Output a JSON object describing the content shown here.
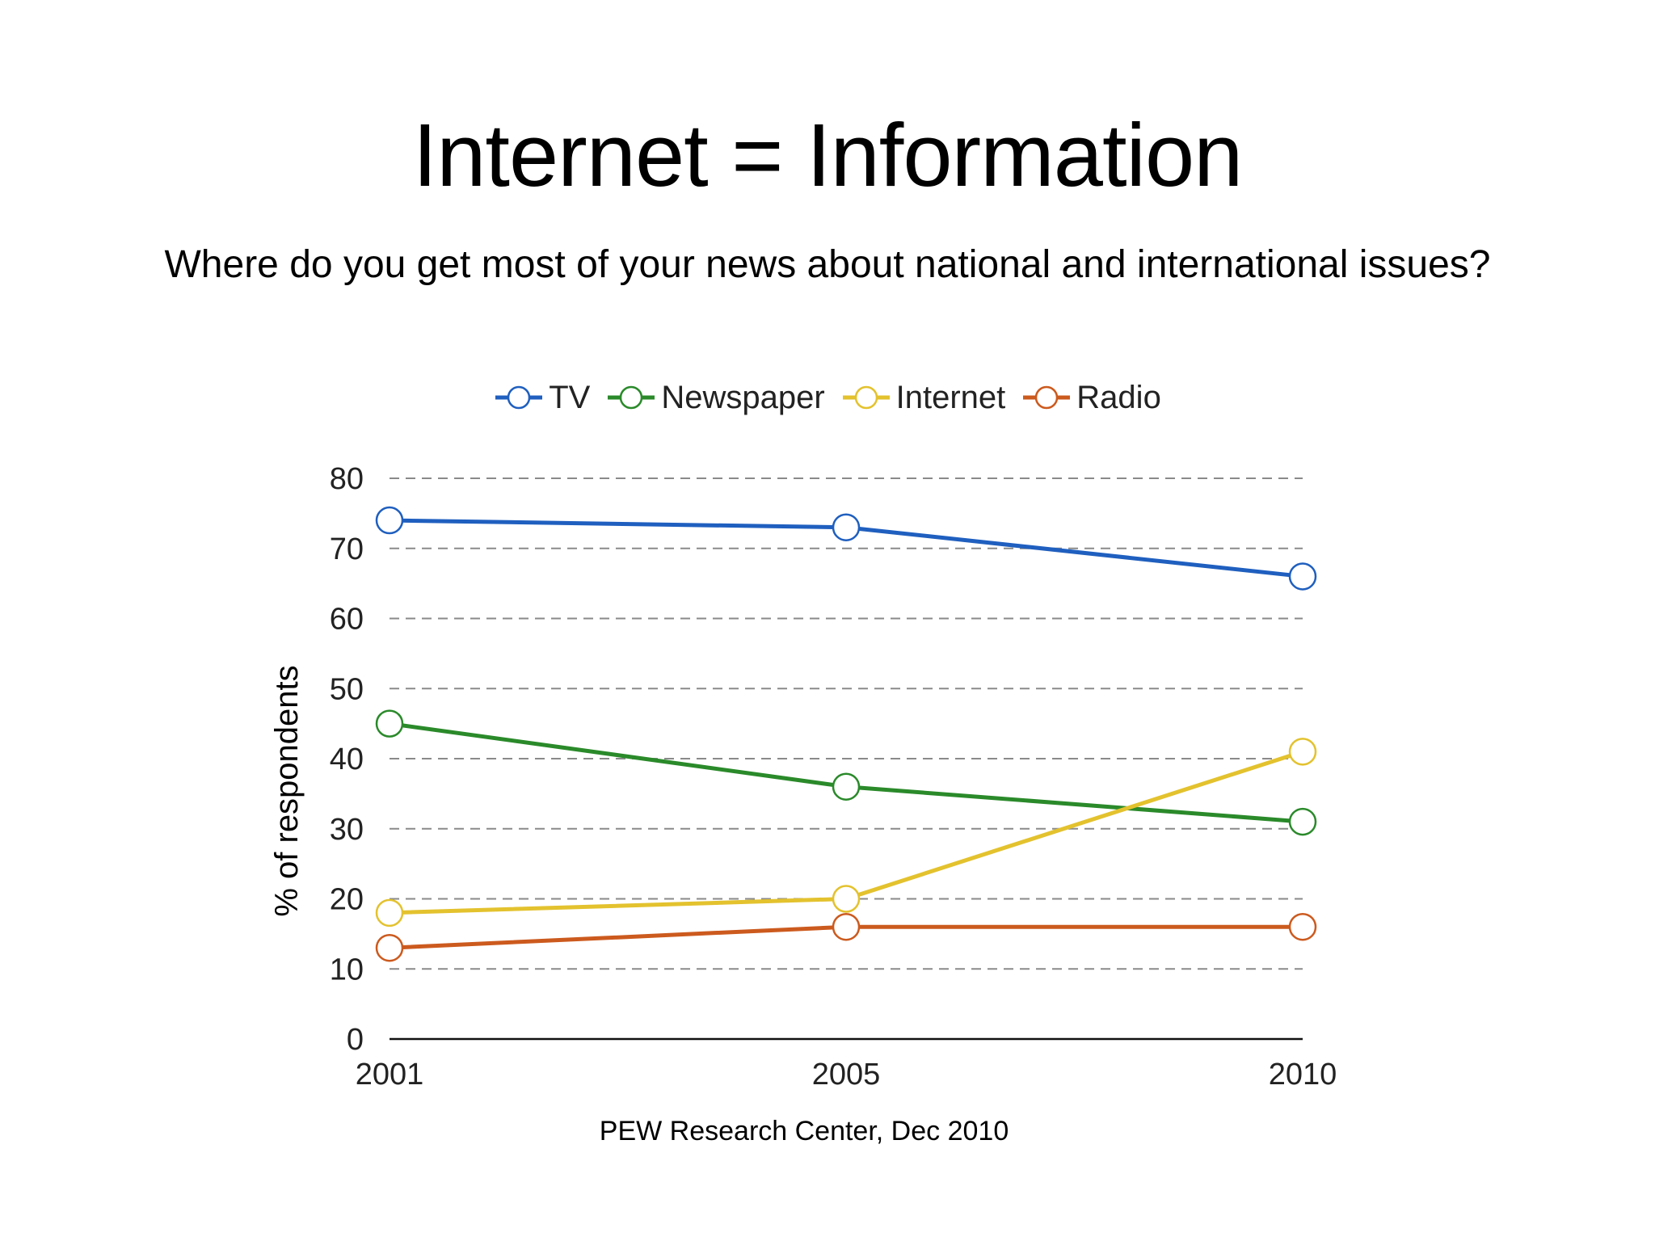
{
  "slide": {
    "title": "Internet = Information",
    "subtitle": "Where do you get most of your news about national and international issues?",
    "source": "PEW Research Center, Dec 2010"
  },
  "chart_data": {
    "type": "line",
    "x": [
      "2001",
      "2005",
      "2010"
    ],
    "ylabel": "% of respondents",
    "xlabel": "",
    "ylim": [
      0,
      80
    ],
    "yticks": [
      0,
      10,
      20,
      30,
      40,
      50,
      60,
      70,
      80
    ],
    "grid": true,
    "legend_position": "top",
    "series": [
      {
        "name": "TV",
        "color": "#1f5fbf",
        "values": [
          74,
          73,
          66
        ]
      },
      {
        "name": "Newspaper",
        "color": "#2a8a2a",
        "values": [
          45,
          36,
          31
        ]
      },
      {
        "name": "Internet",
        "color": "#e3c22e",
        "values": [
          18,
          20,
          41
        ]
      },
      {
        "name": "Radio",
        "color": "#cc5a1e",
        "values": [
          13,
          16,
          16
        ]
      }
    ]
  }
}
